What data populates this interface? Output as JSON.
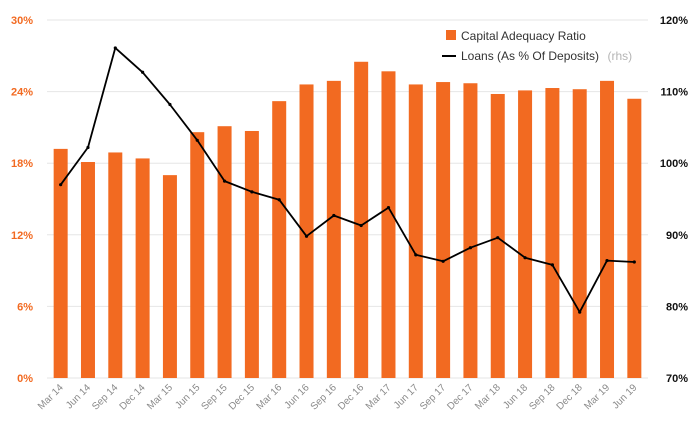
{
  "chart_data": {
    "type": "bar",
    "categories": [
      "Mar 14",
      "Jun 14",
      "Sep 14",
      "Dec 14",
      "Mar 15",
      "Jun 15",
      "Sep 15",
      "Dec 15",
      "Mar 16",
      "Jun 16",
      "Sep 16",
      "Dec 16",
      "Mar 17",
      "Jun 17",
      "Sep 17",
      "Dec 17",
      "Mar 18",
      "Jun 18",
      "Sep 18",
      "Dec 18",
      "Mar 19",
      "Jun 19"
    ],
    "series": [
      {
        "name": "Capital Adequacy Ratio",
        "type": "bar",
        "axis": "left",
        "color": "#f26a21",
        "values": [
          19.2,
          18.1,
          18.9,
          18.4,
          17.0,
          20.6,
          21.1,
          20.7,
          23.2,
          24.6,
          24.9,
          26.5,
          25.7,
          24.6,
          24.8,
          24.7,
          23.8,
          24.1,
          24.3,
          24.2,
          24.9,
          23.4
        ]
      },
      {
        "name": "Loans (As % Of Deposits)",
        "name_suffix": "(rhs)",
        "type": "line",
        "axis": "right",
        "color": "#000000",
        "values": [
          97.0,
          102.2,
          116.1,
          112.7,
          108.2,
          103.2,
          97.5,
          96.0,
          94.9,
          89.8,
          92.7,
          91.3,
          93.8,
          87.2,
          86.3,
          88.2,
          89.6,
          86.8,
          85.8,
          79.2,
          86.4,
          86.2
        ]
      }
    ],
    "y_left": {
      "ticks": [
        "0%",
        "6%",
        "12%",
        "18%",
        "24%",
        "30%"
      ],
      "ylim": [
        0,
        30
      ]
    },
    "y_right": {
      "ticks": [
        "70%",
        "80%",
        "90%",
        "100%",
        "110%",
        "120%"
      ],
      "ylim": [
        70,
        120
      ]
    },
    "grid": true,
    "legend_position": "top-right"
  }
}
